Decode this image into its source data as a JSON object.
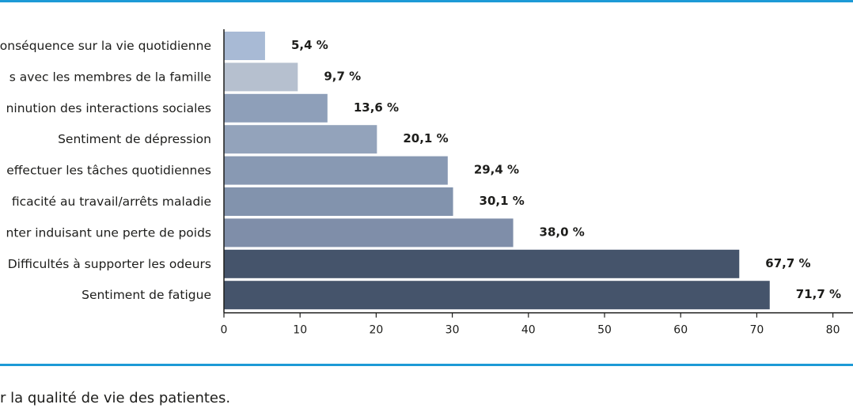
{
  "chart_data": {
    "type": "bar",
    "orientation": "horizontal",
    "categories": [
      "onséquence sur la vie quotidienne",
      "s avec les membres de la famille",
      "ninution des interactions sociales",
      "Sentiment de dépression",
      "effectuer les tâches quotidiennes",
      "ficacité au travail/arrêts maladie",
      "nter induisant une perte de poids",
      "Difficultés à supporter les odeurs",
      "Sentiment de fatigue"
    ],
    "values": [
      5.4,
      9.7,
      13.6,
      20.1,
      29.4,
      30.1,
      38.0,
      67.7,
      71.7
    ],
    "value_labels": [
      "5,4 %",
      "9,7 %",
      "13,6 %",
      "20,1 %",
      "29,4 %",
      "30,1 %",
      "38,0 %",
      "67,7 %",
      "71,7 %"
    ],
    "bar_colors": [
      "#a8bad5",
      "#b6c0cf",
      "#8e9fb9",
      "#93a3bb",
      "#8899b3",
      "#8293ad",
      "#7f8ea9",
      "#45546b",
      "#45546b"
    ],
    "xlim": [
      0,
      80
    ],
    "xticks": [
      "0",
      "10",
      "20",
      "30",
      "40",
      "50",
      "60",
      "70",
      "80"
    ],
    "grid": false,
    "title": "",
    "xlabel": "",
    "ylabel": ""
  },
  "caption": "r la qualité de vie des patientes.",
  "colors": {
    "rule": "#1d9ad6",
    "axis": "#1d1d1b"
  }
}
